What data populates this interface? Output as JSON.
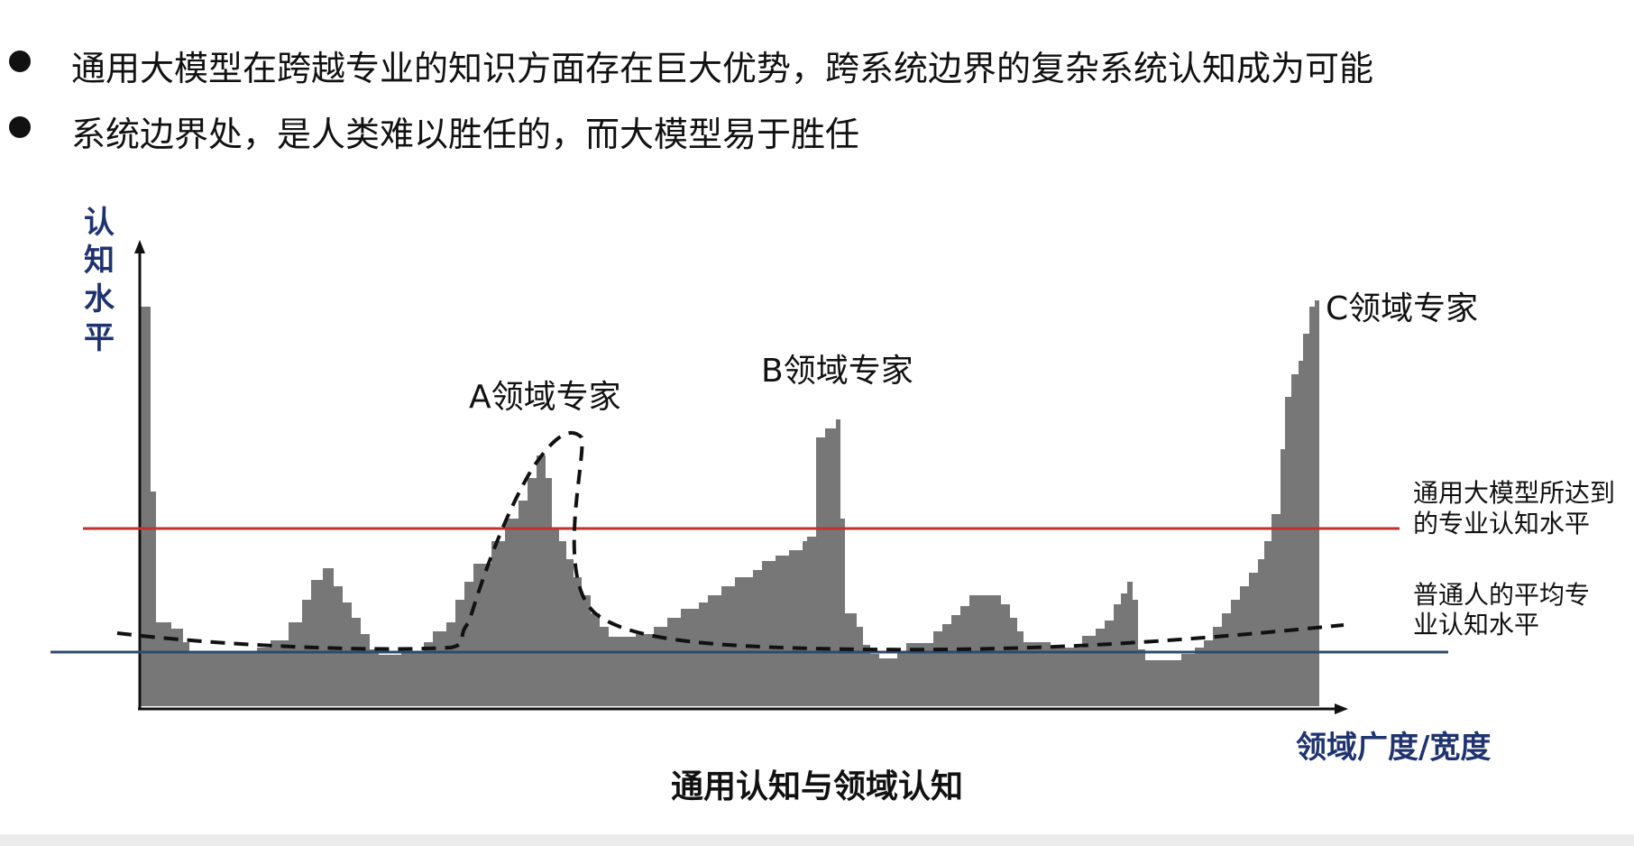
{
  "bullets": [
    "通用大模型在跨越专业的知识方面存在巨大优势，跨系统边界的复杂系统认知成为可能",
    "系统边界处，是人类难以胜任的，而大模型易于胜任"
  ],
  "diagram": {
    "title": "通用认知与领域认知",
    "y_axis_label": [
      "认",
      "知",
      "水",
      "平"
    ],
    "x_axis_label": "领域广度/宽度",
    "peak_labels": {
      "a": "A领域专家",
      "b": "B领域专家",
      "c": "C领域专家"
    },
    "lines": {
      "llm": [
        "通用大模型所达到",
        "的专业认知水平"
      ],
      "average": [
        "普通人的平均专",
        "业认知水平"
      ]
    },
    "colors": {
      "area": "#777777",
      "llm_line": "#c0322b",
      "average_line": "#2f4a6e",
      "axis_label": "#1f3370"
    }
  }
}
